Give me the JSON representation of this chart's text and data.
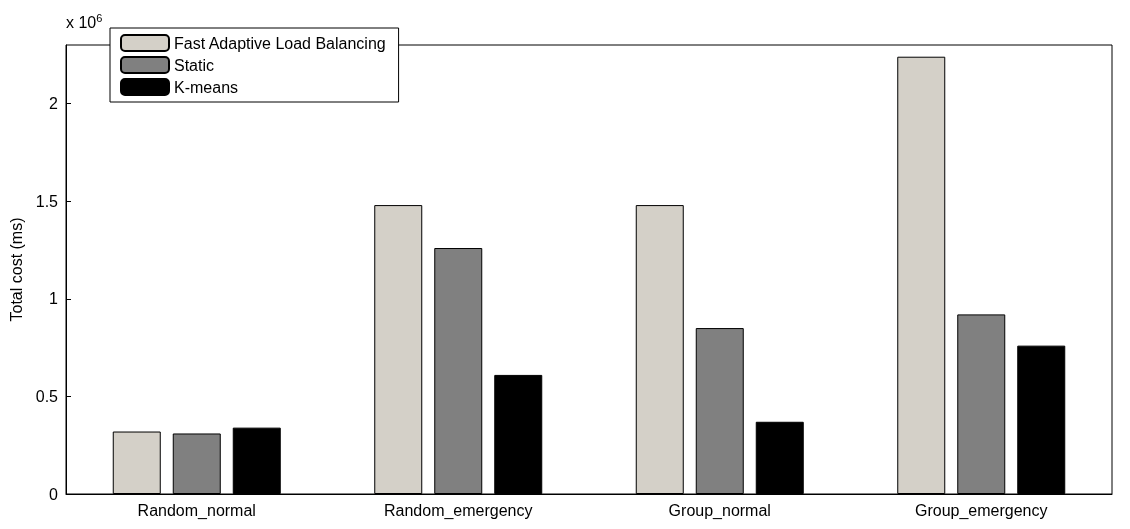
{
  "chart_data": {
    "type": "bar",
    "ylabel": "Total cost (ms)",
    "annotations": [
      "x 10$^{6}$"
    ],
    "categories": [
      "Random_normal",
      "Random_emergency",
      "Group_normal",
      "Group_emergency"
    ],
    "series": [
      {
        "name": "Fast Adaptive Load Balancing",
        "color": "#d4d0c8",
        "values": [
          0.32,
          1.48,
          1.48,
          2.24
        ]
      },
      {
        "name": "Static",
        "color": "#808080",
        "values": [
          0.31,
          1.26,
          0.85,
          0.92
        ]
      },
      {
        "name": "K-means",
        "color": "#000000",
        "values": [
          0.34,
          0.61,
          0.37,
          0.76
        ]
      }
    ],
    "ylim": [
      0,
      2.3
    ],
    "yticks": [
      0,
      0.5,
      1,
      1.5,
      2
    ],
    "grid": false,
    "legend": "top left"
  }
}
